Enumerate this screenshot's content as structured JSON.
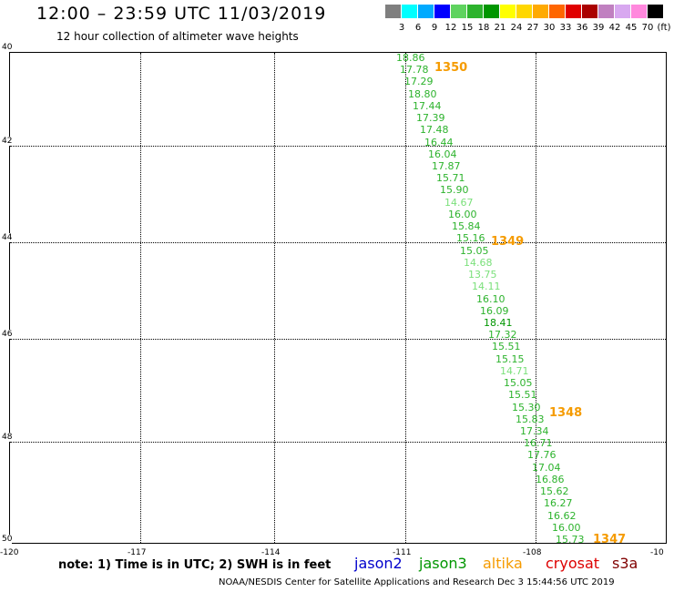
{
  "title": "12:00 – 23:59 UTC 11/03/2019",
  "subtitle": "12 hour collection of altimeter wave heights",
  "colorbar": {
    "swatches": [
      {
        "color": "#7f7f7f",
        "label": "3"
      },
      {
        "color": "#00ffff",
        "label": "6"
      },
      {
        "color": "#00aaff",
        "label": "9"
      },
      {
        "color": "#0000ff",
        "label": "12"
      },
      {
        "color": "#5fd35f",
        "label": "15"
      },
      {
        "color": "#2db32d",
        "label": "18"
      },
      {
        "color": "#009600",
        "label": "21"
      },
      {
        "color": "#ffff00",
        "label": "24"
      },
      {
        "color": "#ffd700",
        "label": "27"
      },
      {
        "color": "#ffaa00",
        "label": "30"
      },
      {
        "color": "#ff6600",
        "label": "33"
      },
      {
        "color": "#e00000",
        "label": "36"
      },
      {
        "color": "#aa0000",
        "label": "39"
      },
      {
        "color": "#c080c0",
        "label": "42"
      },
      {
        "color": "#d8a8f0",
        "label": "45"
      },
      {
        "color": "#ff88dd",
        "label": "70"
      },
      {
        "color": "#000000",
        "label": "(ft)"
      }
    ]
  },
  "map": {
    "lat_labels": [
      "40",
      "42",
      "44",
      "46",
      "48",
      "50"
    ],
    "lon_labels": [
      "-120",
      "-117",
      "-114",
      "-111",
      "-108",
      "-10"
    ],
    "swh_readings": [
      {
        "text": "18.86",
        "color": "#2db32d"
      },
      {
        "text": "17.78",
        "color": "#2db32d"
      },
      {
        "text": "17.29",
        "color": "#2db32d"
      },
      {
        "text": "18.80",
        "color": "#2db32d"
      },
      {
        "text": "17.44",
        "color": "#2db32d"
      },
      {
        "text": "17.39",
        "color": "#2db32d"
      },
      {
        "text": "17.48",
        "color": "#2db32d"
      },
      {
        "text": "16.44",
        "color": "#2db32d"
      },
      {
        "text": "16.04",
        "color": "#2db32d"
      },
      {
        "text": "17.87",
        "color": "#2db32d"
      },
      {
        "text": "15.71",
        "color": "#2db32d"
      },
      {
        "text": "15.90",
        "color": "#2db32d"
      },
      {
        "text": "14.67",
        "color": "#7be07b"
      },
      {
        "text": "16.00",
        "color": "#2db32d"
      },
      {
        "text": "15.84",
        "color": "#2db32d"
      },
      {
        "text": "15.16",
        "color": "#2db32d"
      },
      {
        "text": "15.05",
        "color": "#2db32d"
      },
      {
        "text": "14.68",
        "color": "#7be07b"
      },
      {
        "text": "13.75",
        "color": "#7be07b"
      },
      {
        "text": "14.11",
        "color": "#7be07b"
      },
      {
        "text": "16.10",
        "color": "#2db32d"
      },
      {
        "text": "16.09",
        "color": "#2db32d"
      },
      {
        "text": "18.41",
        "color": "#009600"
      },
      {
        "text": "17.32",
        "color": "#2db32d"
      },
      {
        "text": "15.51",
        "color": "#2db32d"
      },
      {
        "text": "15.15",
        "color": "#2db32d"
      },
      {
        "text": "14.71",
        "color": "#7be07b"
      },
      {
        "text": "15.05",
        "color": "#2db32d"
      },
      {
        "text": "15.51",
        "color": "#2db32d"
      },
      {
        "text": "15.30",
        "color": "#2db32d"
      },
      {
        "text": "15.83",
        "color": "#2db32d"
      },
      {
        "text": "17.34",
        "color": "#2db32d"
      },
      {
        "text": "16.71",
        "color": "#2db32d"
      },
      {
        "text": "17.76",
        "color": "#2db32d"
      },
      {
        "text": "17.04",
        "color": "#2db32d"
      },
      {
        "text": "16.86",
        "color": "#2db32d"
      },
      {
        "text": "15.62",
        "color": "#2db32d"
      },
      {
        "text": "16.27",
        "color": "#2db32d"
      },
      {
        "text": "16.62",
        "color": "#2db32d"
      },
      {
        "text": "16.00",
        "color": "#2db32d"
      },
      {
        "text": "15.73",
        "color": "#2db32d"
      }
    ],
    "pass_labels": [
      "1350",
      "1349",
      "1348",
      "1347"
    ]
  },
  "note": "note: 1) Time is in UTC; 2) SWH is in feet",
  "satellites": [
    {
      "name": "jason2",
      "color": "#0000cc"
    },
    {
      "name": "jason3",
      "color": "#009600"
    },
    {
      "name": "altika",
      "color": "#f59b00"
    },
    {
      "name": "cryosat",
      "color": "#dd0000"
    },
    {
      "name": "s3a",
      "color": "#800000"
    }
  ],
  "footer": "NOAA/NESDIS Center for Satellite Applications and Research    Dec  3 15:44:56 UTC 2019"
}
